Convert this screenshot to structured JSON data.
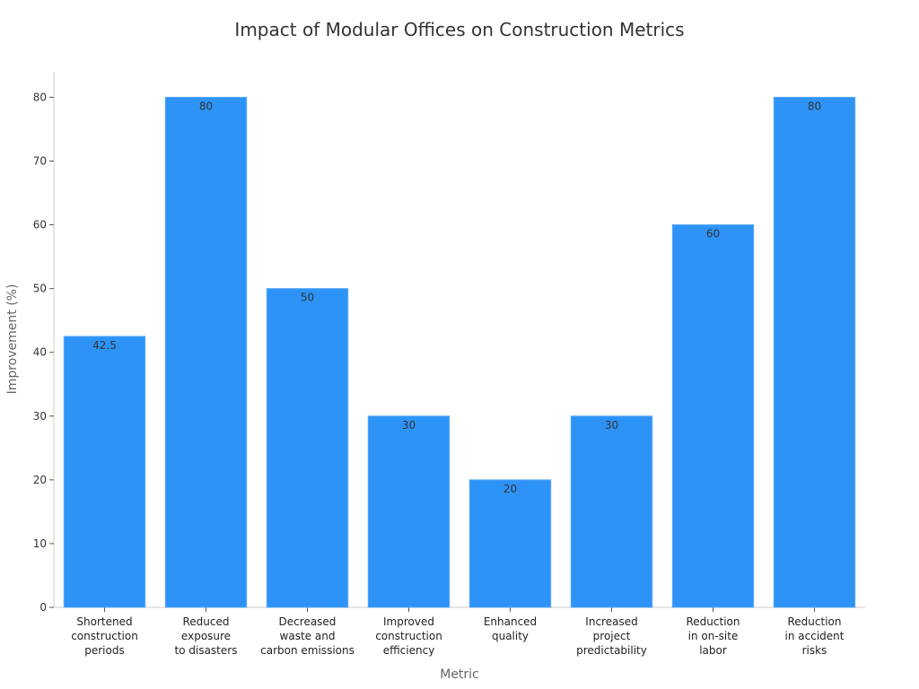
{
  "chart_data": {
    "type": "bar",
    "title": "Impact of Modular Offices on Construction Metrics",
    "xlabel": "Metric",
    "ylabel": "Improvement (%)",
    "ylim": [
      0,
      84
    ],
    "yticks": [
      0,
      10,
      20,
      30,
      40,
      50,
      60,
      70,
      80
    ],
    "categories": [
      [
        "Shortened",
        "construction",
        "periods"
      ],
      [
        "Reduced",
        "exposure",
        "to disasters"
      ],
      [
        "Decreased",
        "waste and",
        "carbon emissions"
      ],
      [
        "Improved",
        "construction",
        "efficiency"
      ],
      [
        "Enhanced",
        "quality"
      ],
      [
        "Increased",
        "project",
        "predictability"
      ],
      [
        "Reduction",
        "in on-site",
        "labor"
      ],
      [
        "Reduction",
        "in accident",
        "risks"
      ]
    ],
    "values": [
      42.5,
      80,
      50,
      30,
      20,
      30,
      60,
      80
    ],
    "data_labels": [
      "42.5",
      "80",
      "50",
      "30",
      "20",
      "30",
      "60",
      "80"
    ],
    "bar_color": "#2e93f7",
    "grid": false,
    "legend": "none"
  }
}
